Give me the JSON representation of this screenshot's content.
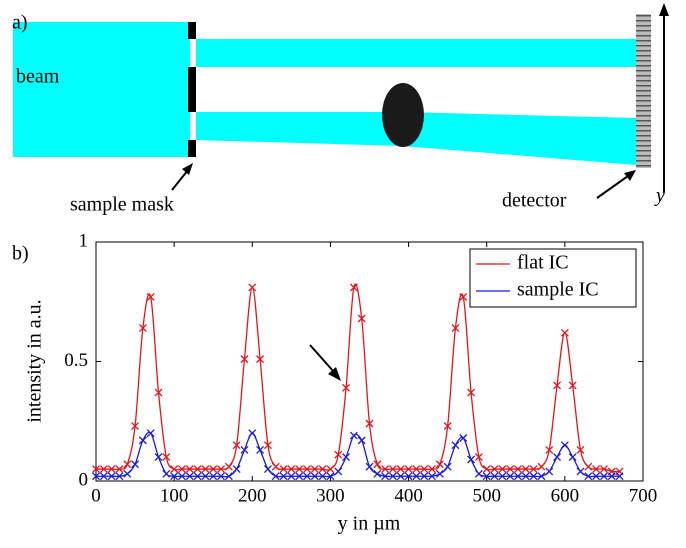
{
  "diagram": {
    "panel_label": "a)",
    "beam_label": "beam",
    "mask_label": "sample mask",
    "detector_label": "detector",
    "axis_label": "y"
  },
  "chart_data": {
    "type": "line",
    "panel_label": "b)",
    "xlabel": "y in µm",
    "ylabel": "intensity in a.u.",
    "x": [
      0,
      10,
      20,
      30,
      40,
      50,
      60,
      70,
      80,
      90,
      100,
      110,
      120,
      130,
      140,
      150,
      160,
      170,
      180,
      190,
      200,
      210,
      220,
      230,
      240,
      250,
      260,
      270,
      280,
      290,
      300,
      310,
      320,
      330,
      340,
      350,
      360,
      370,
      380,
      390,
      400,
      410,
      420,
      430,
      440,
      450,
      460,
      470,
      480,
      490,
      500,
      510,
      520,
      530,
      540,
      550,
      560,
      570,
      580,
      590,
      600,
      610,
      620,
      630,
      640,
      650,
      660,
      670
    ],
    "series": [
      {
        "name": "flat IC",
        "color": "#e8141b",
        "marker": "x",
        "values": [
          0.05,
          0.05,
          0.05,
          0.05,
          0.07,
          0.23,
          0.64,
          0.77,
          0.37,
          0.1,
          0.05,
          0.05,
          0.05,
          0.05,
          0.05,
          0.05,
          0.05,
          0.06,
          0.15,
          0.51,
          0.81,
          0.51,
          0.15,
          0.06,
          0.05,
          0.05,
          0.05,
          0.05,
          0.05,
          0.05,
          0.05,
          0.11,
          0.39,
          0.81,
          0.68,
          0.24,
          0.07,
          0.05,
          0.05,
          0.05,
          0.05,
          0.05,
          0.05,
          0.05,
          0.07,
          0.23,
          0.64,
          0.77,
          0.37,
          0.1,
          0.05,
          0.05,
          0.05,
          0.05,
          0.05,
          0.05,
          0.05,
          0.06,
          0.13,
          0.4,
          0.62,
          0.4,
          0.13,
          0.06,
          0.05,
          0.05,
          0.04,
          0.04
        ]
      },
      {
        "name": "sample IC",
        "color": "#1a1ae0",
        "marker": "x",
        "values": [
          0.02,
          0.02,
          0.02,
          0.02,
          0.03,
          0.07,
          0.17,
          0.2,
          0.1,
          0.03,
          0.02,
          0.02,
          0.02,
          0.02,
          0.02,
          0.02,
          0.02,
          0.02,
          0.05,
          0.13,
          0.2,
          0.13,
          0.05,
          0.02,
          0.02,
          0.02,
          0.02,
          0.02,
          0.02,
          0.02,
          0.02,
          0.04,
          0.1,
          0.19,
          0.17,
          0.06,
          0.03,
          0.02,
          0.02,
          0.02,
          0.02,
          0.02,
          0.02,
          0.02,
          0.03,
          0.06,
          0.15,
          0.18,
          0.09,
          0.03,
          0.02,
          0.02,
          0.02,
          0.02,
          0.02,
          0.02,
          0.02,
          0.02,
          0.04,
          0.1,
          0.15,
          0.1,
          0.04,
          0.02,
          0.02,
          0.02,
          0.02,
          0.02
        ]
      }
    ],
    "xlim": [
      0,
      700
    ],
    "xticks": [
      0,
      100,
      200,
      300,
      400,
      500,
      600,
      700
    ],
    "ylim": [
      0,
      1
    ],
    "yticks": [
      0,
      0.5,
      1
    ],
    "legend": "upper right",
    "grid": false
  }
}
